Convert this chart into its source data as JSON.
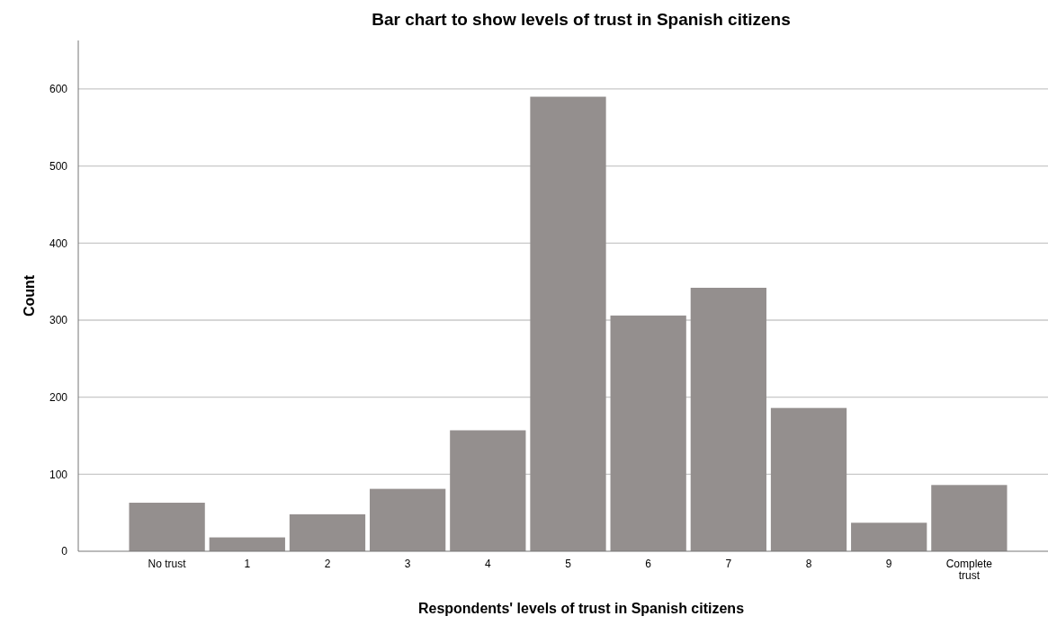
{
  "chart_data": {
    "type": "bar",
    "title": "Bar chart to show levels of trust in Spanish citizens",
    "xlabel": "Respondents' levels of trust in Spanish citizens",
    "ylabel": "Count",
    "categories": [
      "No trust",
      "1",
      "2",
      "3",
      "4",
      "5",
      "6",
      "7",
      "8",
      "9",
      "Complete trust"
    ],
    "values": [
      63,
      18,
      48,
      81,
      157,
      590,
      306,
      342,
      186,
      37,
      86
    ],
    "color": "#948f8e",
    "ylim": [
      0,
      663
    ],
    "yticks": [
      0,
      100,
      200,
      300,
      400,
      500,
      600
    ],
    "grid": "y"
  }
}
